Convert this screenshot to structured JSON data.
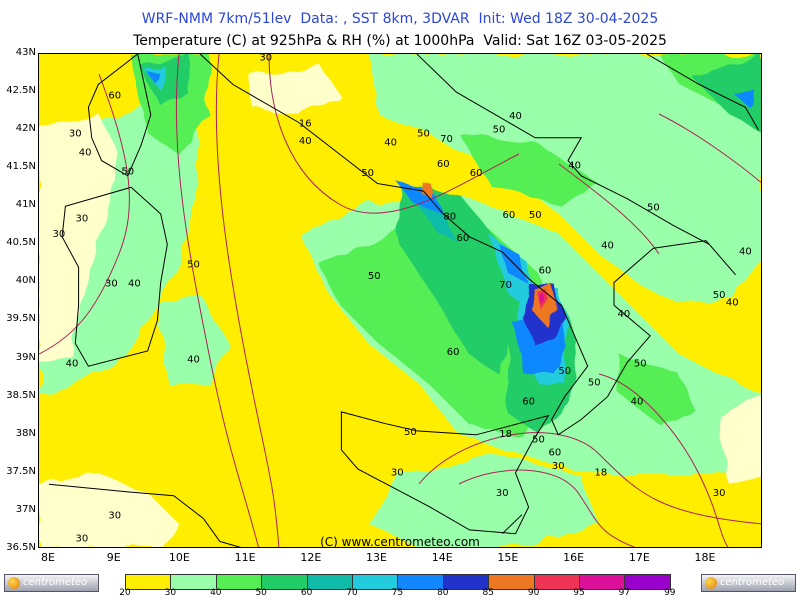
{
  "header": {
    "line1": "WRF-NMM 7km/51lev  Data: , SST 8km, 3DVAR  Init: Wed 18Z 30-04-2025",
    "line2": "Temperature (C) at 925hPa & RH (%) at 1000hPa  Valid: Sat 16Z 03-05-2025"
  },
  "axes": {
    "lat_labels": [
      "43N",
      "42.5N",
      "42N",
      "41.5N",
      "41N",
      "40.5N",
      "40N",
      "39.5N",
      "39N",
      "38.5N",
      "38N",
      "37.5N",
      "37N",
      "36.5N"
    ],
    "lon_labels": [
      "8E",
      "9E",
      "10E",
      "11E",
      "12E",
      "13E",
      "14E",
      "15E",
      "16E",
      "17E",
      "18E"
    ]
  },
  "credit": "(C) www.centrometeo.com",
  "legend": {
    "values": [
      "20",
      "30",
      "40",
      "50",
      "60",
      "70",
      "75",
      "80",
      "85",
      "90",
      "95",
      "97",
      "99"
    ],
    "colors": [
      "#ffffcc",
      "#ffee00",
      "#99ffaa",
      "#55ee55",
      "#22cc66",
      "#11bbaa",
      "#22ccdd",
      "#1188ff",
      "#2233cc",
      "#ee7722",
      "#ee3355",
      "#dd1199",
      "#9900cc"
    ],
    "logo_left": "centrometeo",
    "logo_right": "centrometeo"
  },
  "map": {
    "colors": {
      "very_dry": "#ffffcc",
      "dry": "#ffee00",
      "moist": "#99ffaa",
      "humid": "#55ee55",
      "very_humid": "#22cc66",
      "rh70": "#11bbaa",
      "rh75": "#22ccdd",
      "rh80": "#1188ff",
      "rh85": "#2233cc",
      "rh90": "#ee7722",
      "rh95": "#ee3355",
      "rh97": "#dd1199",
      "coast": "#000000",
      "isotherm": "#aa2255"
    },
    "rh_labels": [
      {
        "text": "30",
        "lat": 42.97,
        "lon": 11.3
      },
      {
        "text": "60",
        "lat": 42.47,
        "lon": 9.0
      },
      {
        "text": "30",
        "lat": 41.97,
        "lon": 8.4
      },
      {
        "text": "40",
        "lat": 41.72,
        "lon": 8.55
      },
      {
        "text": "50",
        "lat": 41.47,
        "lon": 9.2
      },
      {
        "text": "30",
        "lat": 40.85,
        "lon": 8.5
      },
      {
        "text": "30",
        "lat": 40.65,
        "lon": 8.15
      },
      {
        "text": "50",
        "lat": 40.25,
        "lon": 10.2
      },
      {
        "text": "30",
        "lat": 40.0,
        "lon": 8.95
      },
      {
        "text": "40",
        "lat": 40.0,
        "lon": 9.3
      },
      {
        "text": "40",
        "lat": 39.0,
        "lon": 10.2
      },
      {
        "text": "40",
        "lat": 38.95,
        "lon": 8.35
      },
      {
        "text": "16",
        "lat": 42.1,
        "lon": 11.9
      },
      {
        "text": "40",
        "lat": 41.87,
        "lon": 11.9
      },
      {
        "text": "50",
        "lat": 40.1,
        "lon": 12.95
      },
      {
        "text": "60",
        "lat": 39.1,
        "lon": 14.15
      },
      {
        "text": "40",
        "lat": 41.85,
        "lon": 13.2
      },
      {
        "text": "50",
        "lat": 41.45,
        "lon": 12.85
      },
      {
        "text": "50",
        "lat": 41.97,
        "lon": 13.7
      },
      {
        "text": "70",
        "lat": 41.9,
        "lon": 14.05
      },
      {
        "text": "60",
        "lat": 41.57,
        "lon": 14.0
      },
      {
        "text": "60",
        "lat": 41.45,
        "lon": 14.5
      },
      {
        "text": "50",
        "lat": 42.02,
        "lon": 14.85
      },
      {
        "text": "40",
        "lat": 42.2,
        "lon": 15.1
      },
      {
        "text": "40",
        "lat": 41.55,
        "lon": 16.0
      },
      {
        "text": "50",
        "lat": 41.0,
        "lon": 17.2
      },
      {
        "text": "80",
        "lat": 40.88,
        "lon": 14.1
      },
      {
        "text": "60",
        "lat": 40.9,
        "lon": 15.0
      },
      {
        "text": "50",
        "lat": 40.9,
        "lon": 15.4
      },
      {
        "text": "60",
        "lat": 40.6,
        "lon": 14.3
      },
      {
        "text": "70",
        "lat": 39.98,
        "lon": 14.95
      },
      {
        "text": "60",
        "lat": 40.17,
        "lon": 15.55
      },
      {
        "text": "40",
        "lat": 40.5,
        "lon": 16.5
      },
      {
        "text": "40",
        "lat": 40.42,
        "lon": 18.6
      },
      {
        "text": "50",
        "lat": 39.85,
        "lon": 18.2
      },
      {
        "text": "40",
        "lat": 39.75,
        "lon": 18.4
      },
      {
        "text": "40",
        "lat": 39.6,
        "lon": 16.75
      },
      {
        "text": "50",
        "lat": 38.95,
        "lon": 17.0
      },
      {
        "text": "50",
        "lat": 38.85,
        "lon": 15.85
      },
      {
        "text": "50",
        "lat": 38.7,
        "lon": 16.3
      },
      {
        "text": "40",
        "lat": 38.45,
        "lon": 16.95
      },
      {
        "text": "60",
        "lat": 38.45,
        "lon": 15.3
      },
      {
        "text": "50",
        "lat": 38.05,
        "lon": 13.5
      },
      {
        "text": "18",
        "lat": 38.02,
        "lon": 14.95
      },
      {
        "text": "50",
        "lat": 37.95,
        "lon": 15.45
      },
      {
        "text": "60",
        "lat": 37.78,
        "lon": 15.7
      },
      {
        "text": "30",
        "lat": 37.6,
        "lon": 15.75
      },
      {
        "text": "30",
        "lat": 37.52,
        "lon": 13.3
      },
      {
        "text": "18",
        "lat": 37.52,
        "lon": 16.4
      },
      {
        "text": "30",
        "lat": 37.25,
        "lon": 14.9
      },
      {
        "text": "30",
        "lat": 37.25,
        "lon": 18.2
      },
      {
        "text": "30",
        "lat": 36.95,
        "lon": 9.0
      },
      {
        "text": "30",
        "lat": 36.65,
        "lon": 8.5
      }
    ]
  }
}
